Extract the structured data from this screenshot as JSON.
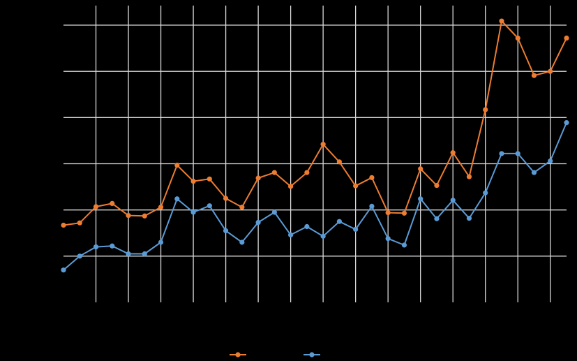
{
  "chart_data": {
    "type": "line",
    "title": "",
    "xlabel": "",
    "ylabel": "",
    "x": [
      1,
      2,
      3,
      4,
      5,
      6,
      7,
      8,
      9,
      10,
      11,
      12,
      13,
      14,
      15,
      16,
      17,
      18,
      19,
      20,
      21,
      22,
      23,
      24,
      25,
      26,
      27,
      28,
      29,
      30,
      31,
      32
    ],
    "ylim": [
      0,
      6
    ],
    "y_ticks": [
      0,
      1,
      2,
      3,
      4,
      5,
      6
    ],
    "grid": {
      "horizontal": true,
      "vertical": true
    },
    "legend": {
      "position": "bottom"
    },
    "series": [
      {
        "name": "",
        "color": "#ED7D31",
        "values": [
          1.67,
          1.72,
          2.07,
          2.14,
          1.88,
          1.87,
          2.06,
          2.97,
          2.62,
          2.67,
          2.25,
          2.06,
          2.69,
          2.81,
          2.51,
          2.81,
          3.42,
          3.04,
          2.52,
          2.7,
          1.94,
          1.93,
          2.89,
          2.53,
          3.24,
          2.72,
          4.17,
          6.09,
          5.72,
          4.91,
          5.0,
          5.72
        ]
      },
      {
        "name": "",
        "color": "#5B9BD5",
        "values": [
          0.7,
          1.0,
          1.2,
          1.22,
          1.05,
          1.05,
          1.3,
          2.24,
          1.95,
          2.09,
          1.55,
          1.3,
          1.73,
          1.95,
          1.46,
          1.64,
          1.43,
          1.75,
          1.58,
          2.08,
          1.38,
          1.24,
          2.24,
          1.81,
          2.21,
          1.82,
          2.37,
          3.22,
          3.22,
          2.81,
          3.06,
          3.89
        ]
      }
    ]
  }
}
